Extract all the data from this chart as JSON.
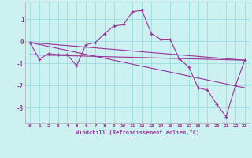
{
  "xlabel": "Windchill (Refroidissement éolien,°C)",
  "background_color": "#cdf0f0",
  "line_color": "#993399",
  "grid_color": "#99dddd",
  "xlim": [
    -0.5,
    23.5
  ],
  "ylim": [
    -3.7,
    1.8
  ],
  "yticks": [
    1,
    0,
    -1,
    -2,
    -3
  ],
  "xticks": [
    0,
    1,
    2,
    3,
    4,
    5,
    6,
    7,
    8,
    9,
    10,
    11,
    12,
    13,
    14,
    15,
    16,
    17,
    18,
    19,
    20,
    21,
    22,
    23
  ],
  "series": [
    [
      0,
      -0.05
    ],
    [
      1,
      -0.8
    ],
    [
      2,
      -0.55
    ],
    [
      3,
      -0.6
    ],
    [
      4,
      -0.6
    ],
    [
      5,
      -1.1
    ],
    [
      6,
      -0.15
    ],
    [
      7,
      -0.05
    ],
    [
      8,
      0.35
    ],
    [
      9,
      0.7
    ],
    [
      10,
      0.75
    ],
    [
      11,
      1.35
    ],
    [
      12,
      1.4
    ],
    [
      13,
      0.35
    ],
    [
      14,
      0.1
    ],
    [
      15,
      0.1
    ],
    [
      16,
      -0.8
    ],
    [
      17,
      -1.15
    ],
    [
      18,
      -2.1
    ],
    [
      19,
      -2.2
    ],
    [
      20,
      -2.85
    ],
    [
      21,
      -3.4
    ],
    [
      22,
      -2.0
    ],
    [
      23,
      -0.85
    ]
  ],
  "straight_lines": [
    [
      [
        0,
        -0.05
      ],
      [
        23,
        -0.85
      ]
    ],
    [
      [
        0,
        -0.6
      ],
      [
        23,
        -0.85
      ]
    ],
    [
      [
        0,
        -0.05
      ],
      [
        23,
        -2.1
      ]
    ]
  ]
}
